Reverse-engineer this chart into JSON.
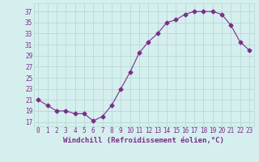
{
  "x": [
    0,
    1,
    2,
    3,
    4,
    5,
    6,
    7,
    8,
    9,
    10,
    11,
    12,
    13,
    14,
    15,
    16,
    17,
    18,
    19,
    20,
    21,
    22,
    23
  ],
  "y": [
    21,
    20,
    19,
    19,
    18.5,
    18.5,
    17.2,
    18,
    20,
    23,
    26,
    29.5,
    31.5,
    33,
    35,
    35.5,
    36.5,
    37,
    37,
    37,
    36.5,
    34.5,
    31.5,
    30
  ],
  "line_color": "#7b2d8b",
  "marker": "D",
  "marker_size": 2.5,
  "background_color": "#d5efee",
  "grid_color": "#b8d8d8",
  "xlabel": "Windchill (Refroidissement éolien,°C)",
  "yticks": [
    17,
    19,
    21,
    23,
    25,
    27,
    29,
    31,
    33,
    35,
    37
  ],
  "ylim": [
    16.2,
    38.5
  ],
  "xlim": [
    -0.5,
    23.5
  ],
  "tick_color": "#7b2d8b",
  "xlabel_color": "#7b2d8b",
  "font_size": 6.5,
  "lw": 0.8
}
